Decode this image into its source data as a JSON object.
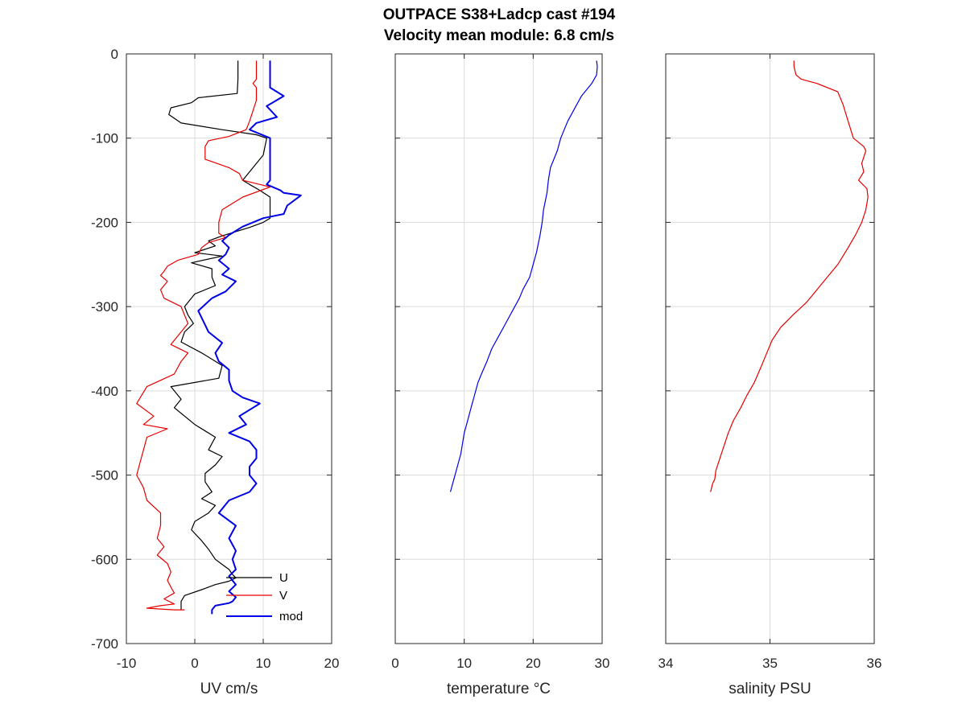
{
  "header": {
    "title": "OUTPACE S38+Ladcp cast #194",
    "subtitle": "Velocity mean module:  6.8 cm/s"
  },
  "chart_data": [
    {
      "type": "line",
      "id": "uv",
      "xlabel": "UV cm/s",
      "ylabel": "",
      "xlim": [
        -10,
        20
      ],
      "ylim": [
        -700,
        0
      ],
      "xticks": [
        -10,
        0,
        10,
        20
      ],
      "yticks": [
        0,
        -100,
        -200,
        -300,
        -400,
        -500,
        -600,
        -700
      ],
      "show_yticklabels": true,
      "grid": true,
      "legend": {
        "placement": "bottom-right",
        "entries": [
          "U",
          "V",
          "mod"
        ]
      },
      "series": [
        {
          "name": "U",
          "color": "#000000",
          "x": [
            6.3,
            6.3,
            6.2,
            0.5,
            -0.5,
            -3.5,
            -3.8,
            -2,
            4,
            9,
            10.5,
            10,
            8,
            7,
            8,
            9.5,
            11,
            11,
            11,
            10,
            8,
            4,
            2,
            3,
            0,
            4,
            -0.5,
            2.5,
            2.5,
            3,
            0,
            -1.5,
            -1,
            -0.2,
            -1.5,
            -2,
            1,
            4,
            3.5,
            -3.5,
            -2,
            -3,
            0,
            3,
            2,
            4,
            3,
            1.5,
            1.5,
            2.5,
            1,
            3,
            2,
            0,
            -0.5,
            1,
            2,
            3,
            4,
            5,
            5.5,
            6,
            5,
            3,
            1,
            -1.5,
            -2,
            -2
          ],
          "y": [
            -8,
            -30,
            -47,
            -52,
            -58,
            -64,
            -72,
            -82,
            -90,
            -96,
            -100,
            -120,
            -140,
            -150,
            -155,
            -162,
            -170,
            -185,
            -195,
            -200,
            -206,
            -216,
            -222,
            -228,
            -236,
            -240,
            -248,
            -255,
            -265,
            -275,
            -285,
            -300,
            -310,
            -320,
            -330,
            -342,
            -355,
            -370,
            -385,
            -395,
            -410,
            -420,
            -440,
            -455,
            -470,
            -478,
            -488,
            -498,
            -508,
            -520,
            -528,
            -536,
            -545,
            -555,
            -565,
            -578,
            -588,
            -600,
            -606,
            -612,
            -618,
            -622,
            -626,
            -630,
            -636,
            -643,
            -650,
            -660
          ]
        },
        {
          "name": "V",
          "color": "#e60000",
          "x": [
            9,
            9,
            9,
            8.5,
            9,
            9,
            8,
            7.5,
            5,
            2,
            1.5,
            1.5,
            5,
            6.5,
            7,
            11,
            7,
            4,
            3.5,
            3.5,
            3.5,
            4.5,
            2,
            1,
            0.5,
            -2.5,
            -4,
            -4.5,
            -5,
            -4,
            -5,
            -4.5,
            -2,
            -1,
            -2,
            -3.5,
            -1,
            -2,
            -3,
            -7,
            -8.5,
            -6,
            -7.5,
            -4,
            -7,
            -7.5,
            -8,
            -8.5,
            -7.5,
            -7,
            -5,
            -5,
            -5.5,
            -4.5,
            -5.5,
            -4,
            -3.5,
            -4,
            -3.5,
            -3,
            -4.5,
            -3,
            -5,
            -7,
            -5,
            -3,
            -1.5
          ],
          "y": [
            -8,
            -20,
            -30,
            -35,
            -40,
            -55,
            -80,
            -90,
            -98,
            -103,
            -110,
            -125,
            -135,
            -142,
            -150,
            -158,
            -170,
            -185,
            -200,
            -207,
            -213,
            -218,
            -224,
            -230,
            -238,
            -245,
            -252,
            -258,
            -263,
            -270,
            -280,
            -290,
            -300,
            -320,
            -330,
            -345,
            -355,
            -365,
            -380,
            -395,
            -415,
            -430,
            -440,
            -445,
            -455,
            -470,
            -485,
            -500,
            -515,
            -530,
            -545,
            -560,
            -575,
            -585,
            -595,
            -605,
            -615,
            -625,
            -633,
            -640,
            -647,
            -653,
            -655,
            -658,
            -659,
            -660,
            -660
          ]
        },
        {
          "name": "mod",
          "color": "#0000e6",
          "x": [
            11,
            11,
            11,
            11,
            12,
            13,
            10.5,
            12,
            9,
            8,
            11,
            11,
            11,
            11,
            11,
            10.5,
            12.5,
            13,
            15.5,
            13.5,
            13,
            10,
            7,
            5,
            4,
            5,
            4.5,
            3.5,
            5,
            4,
            6,
            4.5,
            2.5,
            0.5,
            2,
            4,
            3,
            3.5,
            5,
            5,
            5.5,
            7,
            9.5,
            6.5,
            7.5,
            5,
            8,
            9,
            9,
            8,
            8,
            9,
            8,
            5,
            3.5,
            6,
            5,
            6,
            5.5,
            6,
            5,
            6,
            5,
            6,
            5.5,
            5,
            3,
            2.5,
            2.5
          ],
          "y": [
            -8,
            -20,
            -35,
            -40,
            -45,
            -50,
            -62,
            -75,
            -82,
            -90,
            -100,
            -115,
            -125,
            -140,
            -150,
            -155,
            -162,
            -165,
            -168,
            -180,
            -190,
            -195,
            -205,
            -215,
            -222,
            -230,
            -238,
            -245,
            -255,
            -262,
            -270,
            -282,
            -290,
            -305,
            -330,
            -343,
            -355,
            -365,
            -375,
            -388,
            -400,
            -408,
            -415,
            -430,
            -440,
            -450,
            -460,
            -470,
            -480,
            -490,
            -500,
            -510,
            -520,
            -530,
            -545,
            -560,
            -575,
            -590,
            -600,
            -612,
            -620,
            -630,
            -638,
            -645,
            -650,
            -652,
            -655,
            -660,
            -665
          ]
        }
      ]
    },
    {
      "type": "line",
      "id": "temp",
      "xlabel": "temperature °C",
      "ylabel": "",
      "xlim": [
        0,
        30
      ],
      "ylim": [
        -700,
        0
      ],
      "xticks": [
        0,
        10,
        20,
        30
      ],
      "yticks": [
        0,
        -100,
        -200,
        -300,
        -400,
        -500,
        -600,
        -700
      ],
      "show_yticklabels": false,
      "grid": true,
      "series": [
        {
          "name": "",
          "color": "#0000e6",
          "x": [
            29.2,
            29.3,
            29.2,
            28.5,
            27,
            26,
            25,
            24.5,
            24,
            23.5,
            22.5,
            22.2,
            22,
            21.5,
            21.3,
            21,
            20.5,
            20,
            19.5,
            18.5,
            18,
            17,
            16,
            15,
            14,
            13.3,
            12.5,
            12,
            11.5,
            11,
            10.5,
            10,
            9.8,
            9.5,
            9,
            8.5,
            8
          ],
          "y": [
            -8,
            -15,
            -25,
            -35,
            -50,
            -65,
            -80,
            -90,
            -100,
            -115,
            -135,
            -150,
            -165,
            -185,
            -200,
            -215,
            -235,
            -250,
            -265,
            -280,
            -290,
            -305,
            -320,
            -335,
            -350,
            -365,
            -380,
            -390,
            -405,
            -420,
            -435,
            -450,
            -460,
            -475,
            -490,
            -505,
            -520
          ]
        }
      ]
    },
    {
      "type": "line",
      "id": "sal",
      "xlabel": "salinity PSU",
      "ylabel": "",
      "xlim": [
        34,
        36
      ],
      "ylim": [
        -700,
        0
      ],
      "xticks": [
        34,
        35,
        36
      ],
      "yticks": [
        0,
        -100,
        -200,
        -300,
        -400,
        -500,
        -600,
        -700
      ],
      "show_yticklabels": false,
      "grid": true,
      "series": [
        {
          "name": "",
          "color": "#e60000",
          "x": [
            35.23,
            35.23,
            35.25,
            35.3,
            35.45,
            35.65,
            35.7,
            35.75,
            35.8,
            35.9,
            35.92,
            35.88,
            35.9,
            35.85,
            35.93,
            35.94,
            35.92,
            35.88,
            35.82,
            35.75,
            35.7,
            35.65,
            35.55,
            35.45,
            35.35,
            35.22,
            35.1,
            35.02,
            34.97,
            34.92,
            34.85,
            34.78,
            34.72,
            34.65,
            34.6,
            34.56,
            34.52,
            34.48,
            34.47,
            34.45,
            34.44,
            34.43
          ],
          "y": [
            -8,
            -15,
            -25,
            -30,
            -35,
            -45,
            -60,
            -80,
            -100,
            -110,
            -115,
            -130,
            -140,
            -150,
            -160,
            -170,
            -185,
            -200,
            -215,
            -230,
            -240,
            -250,
            -265,
            -280,
            -295,
            -310,
            -325,
            -340,
            -355,
            -370,
            -390,
            -405,
            -420,
            -435,
            -450,
            -465,
            -480,
            -495,
            -505,
            -510,
            -515,
            -520
          ]
        }
      ]
    }
  ]
}
